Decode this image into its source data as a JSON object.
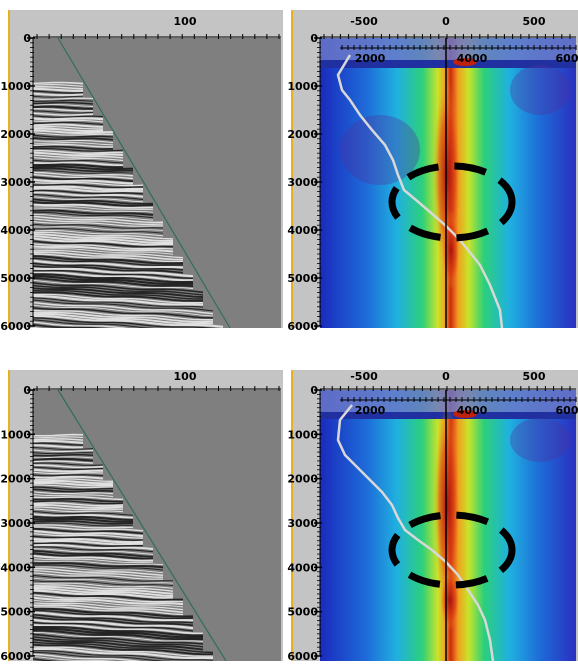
{
  "colors": {
    "panel_gray": "#7f7f7f",
    "frame_gray": "#c0c0c0",
    "accent_yellow": "#e8b020",
    "trace_line": "#cfcfcf",
    "ring": "#000000"
  },
  "panels": [
    {
      "id": "top",
      "left_top_tick": "100",
      "right_top_ticks": [
        "-500",
        "0",
        "500"
      ],
      "right_vel_ticks": [
        "2000",
        "4000",
        "600"
      ],
      "depth_ticks": [
        "0",
        "1000",
        "2000",
        "3000",
        "4000",
        "5000",
        "6000"
      ]
    },
    {
      "id": "bottom",
      "left_top_tick": "100",
      "right_top_ticks": [
        "-500",
        "0",
        "500"
      ],
      "right_vel_ticks": [
        "2000",
        "4000",
        "600"
      ],
      "depth_ticks": [
        "0",
        "1000",
        "2000",
        "3000",
        "4000",
        "5000",
        "6000"
      ]
    }
  ]
}
